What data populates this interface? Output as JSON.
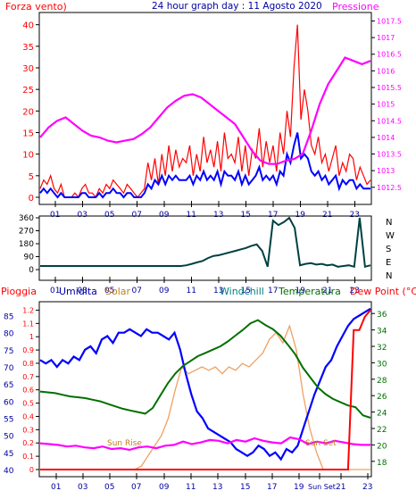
{
  "colors": {
    "frame": "#000000",
    "red": "#ff0000",
    "blue": "#0000ff",
    "navy": "#0000a0",
    "magenta": "#ff00ff",
    "green": "#007000",
    "teal": "#004040",
    "orange": "#f0a060",
    "solarText": "#c08020",
    "windchillText": "#008080"
  },
  "header": {
    "left": "Forza vento)",
    "center": "24 hour graph day : 11 Agosto 2020",
    "right": "Pressione"
  },
  "legend_bottom": {
    "pioggia": "Pioggia",
    "umidita": "Umidita",
    "solar": "Solar",
    "windchill": "Windchill",
    "temperatura": "Temperatura",
    "dewpoint": "Dew Point (°C)"
  },
  "annotations": {
    "sunrise": "Sun Rise",
    "sunset": "Sun Set"
  },
  "chart_data": [
    {
      "type": "line",
      "x_ticks": [
        "01",
        "03",
        "05",
        "07",
        "09",
        "11",
        "13",
        "15",
        "17",
        "19",
        "21",
        "23"
      ],
      "left_axis": {
        "ticks": [
          0,
          5,
          10,
          15,
          20,
          25,
          30,
          35,
          40
        ],
        "ylim": [
          0,
          42
        ]
      },
      "right_axis": {
        "ticks": [
          1012.5,
          1013,
          1013.5,
          1014,
          1014.5,
          1015,
          1015.5,
          1016,
          1016.5,
          1017,
          1017.5
        ],
        "ylim": [
          1012.2,
          1017.7
        ]
      },
      "series": [
        {
          "name": "Forza vento",
          "color": "#ff0000",
          "axis": "left",
          "values": [
            2,
            4,
            3,
            5,
            2,
            1,
            3,
            0,
            0,
            0,
            1,
            0,
            2,
            3,
            1,
            1,
            0,
            2,
            1,
            3,
            2,
            4,
            3,
            2,
            1,
            3,
            2,
            1,
            0,
            1,
            2,
            8,
            4,
            9,
            3,
            10,
            5,
            12,
            6,
            11,
            7,
            9,
            8,
            12,
            5,
            10,
            6,
            14,
            8,
            11,
            7,
            13,
            6,
            15,
            9,
            10,
            8,
            14,
            6,
            12,
            5,
            11,
            9,
            16,
            7,
            13,
            8,
            12,
            6,
            15,
            10,
            20,
            14,
            30,
            40,
            18,
            25,
            20,
            12,
            10,
            14,
            8,
            10,
            6,
            9,
            12,
            5,
            8,
            6,
            10,
            9,
            4,
            7,
            5,
            3,
            4
          ]
        },
        {
          "name": "Vento medio",
          "color": "#0000ff",
          "axis": "left",
          "values": [
            1,
            2,
            1,
            2,
            1,
            0,
            1,
            0,
            0,
            0,
            0,
            0,
            1,
            1,
            0,
            0,
            0,
            1,
            0,
            1,
            1,
            2,
            1,
            1,
            0,
            1,
            1,
            0,
            0,
            0,
            1,
            3,
            2,
            4,
            3,
            5,
            3,
            5,
            4,
            5,
            4,
            4,
            4,
            5,
            3,
            5,
            4,
            6,
            4,
            5,
            4,
            6,
            3,
            6,
            5,
            5,
            4,
            6,
            3,
            5,
            3,
            4,
            5,
            7,
            4,
            5,
            4,
            5,
            3,
            6,
            5,
            10,
            8,
            12,
            15,
            9,
            10,
            9,
            6,
            5,
            6,
            4,
            5,
            3,
            4,
            5,
            2,
            4,
            3,
            4,
            4,
            2,
            3,
            2,
            2,
            2
          ]
        },
        {
          "name": "Pressione",
          "color": "#ff00ff",
          "axis": "right",
          "values": [
            1014,
            1014.3,
            1014.5,
            1014.6,
            1014.4,
            1014.2,
            1014.05,
            1014,
            1013.9,
            1013.85,
            1013.9,
            1013.95,
            1014.1,
            1014.3,
            1014.6,
            1014.9,
            1015.1,
            1015.25,
            1015.3,
            1015.2,
            1015.0,
            1014.8,
            1014.6,
            1014.4,
            1014.0,
            1013.6,
            1013.3,
            1013.2,
            1013.2,
            1013.3,
            1013.35,
            1013.5,
            1014.2,
            1015.0,
            1015.6,
            1016.0,
            1016.4,
            1016.3,
            1016.2,
            1016.3
          ]
        }
      ]
    },
    {
      "type": "line",
      "x_ticks": [
        "01",
        "03",
        "05",
        "07",
        "09",
        "11",
        "13",
        "15",
        "17",
        "19",
        "21",
        "23"
      ],
      "left_axis": {
        "ticks": [
          0,
          90,
          180,
          270,
          360
        ],
        "ylim": [
          0,
          360
        ]
      },
      "right_labels": [
        "N",
        "W",
        "S",
        "E",
        "N"
      ],
      "series": [
        {
          "name": "Direzione vento",
          "color": "#004040",
          "values": [
            25,
            25,
            25,
            25,
            25,
            25,
            25,
            25,
            25,
            25,
            25,
            25,
            25,
            25,
            25,
            25,
            25,
            25,
            25,
            25,
            25,
            25,
            25,
            25,
            25,
            25,
            25,
            30,
            40,
            50,
            60,
            80,
            95,
            100,
            110,
            120,
            130,
            140,
            150,
            165,
            175,
            130,
            20,
            340,
            310,
            330,
            360,
            290,
            30,
            40,
            45,
            35,
            40,
            30,
            35,
            20,
            25,
            30,
            20,
            360,
            20,
            30
          ]
        }
      ]
    },
    {
      "type": "line",
      "x_ticks": [
        "01",
        "03",
        "05",
        "07",
        "09",
        "11",
        "13",
        "15",
        "17",
        "19",
        "Sun Set",
        "21",
        "23"
      ],
      "left_axis": {
        "ticks": [
          40,
          45,
          50,
          55,
          60,
          65,
          70,
          75,
          80,
          85
        ],
        "ylim": [
          40,
          88
        ]
      },
      "rain_axis": {
        "ticks": [
          0,
          0.1,
          0.2,
          0.3,
          0.4,
          0.5,
          0.6,
          0.7,
          0.8,
          0.9,
          1,
          1.1,
          1.2
        ],
        "ylim": [
          0,
          1.25
        ]
      },
      "right_axis": {
        "ticks": [
          18,
          20,
          22,
          24,
          26,
          28,
          30,
          32,
          34,
          36
        ],
        "ylim": [
          17,
          37
        ]
      },
      "series": [
        {
          "name": "Umidita",
          "color": "#0000ff",
          "axis": "left",
          "values": [
            72,
            71,
            72,
            70,
            72,
            71,
            73,
            72,
            75,
            76,
            74,
            78,
            79,
            77,
            80,
            80,
            81,
            80,
            79,
            81,
            80,
            80,
            79,
            78,
            80,
            75,
            68,
            62,
            57,
            55,
            52,
            51,
            50,
            49,
            48,
            46,
            45,
            44,
            45,
            47,
            46,
            44,
            45,
            43,
            46,
            45,
            47,
            52,
            57,
            62,
            66,
            70,
            72,
            76,
            79,
            82,
            84,
            85,
            86,
            87
          ]
        },
        {
          "name": "Temperatura",
          "color": "#007000",
          "axis": "right",
          "values": [
            26.5,
            26.4,
            26.3,
            26.1,
            25.9,
            25.8,
            25.7,
            25.5,
            25.3,
            25.0,
            24.7,
            24.4,
            24.2,
            24.0,
            23.8,
            24.5,
            26,
            27.5,
            28.7,
            29.6,
            30.2,
            30.8,
            31.2,
            31.6,
            32.0,
            32.6,
            33.3,
            34.0,
            34.8,
            35.2,
            34.6,
            34.1,
            33.3,
            32.2,
            31.0,
            29.4,
            28.2,
            27.0,
            26.2,
            25.6,
            25.2,
            24.8,
            24.6,
            23.6,
            23.3
          ]
        },
        {
          "name": "Dew Point",
          "color": "#ff00ff",
          "axis": "right",
          "values": [
            20.2,
            20.1,
            20.0,
            19.8,
            19.9,
            19.7,
            19.6,
            19.8,
            19.5,
            19.6,
            19.4,
            19.7,
            19.8,
            19.6,
            19.9,
            20.0,
            20.4,
            20.1,
            20.3,
            20.6,
            20.5,
            20.2,
            20.6,
            20.4,
            20.8,
            20.5,
            20.3,
            20.2,
            20.9,
            20.7,
            20.1,
            20.4,
            20.2,
            20.5,
            20.3,
            20.1,
            20.0,
            20.0
          ]
        },
        {
          "name": "Solar",
          "color": "#f0a060",
          "axis": "left",
          "values": [
            40,
            40,
            40,
            40,
            40,
            40,
            40,
            40,
            40,
            40,
            40,
            40,
            40,
            40,
            40,
            41,
            44,
            47,
            50,
            55,
            63,
            70,
            68,
            69,
            70,
            69,
            70,
            68,
            70,
            69,
            71,
            70,
            72,
            74,
            78,
            80,
            77,
            82,
            75,
            62,
            52,
            45,
            40,
            40,
            40,
            40,
            40,
            40,
            40,
            40
          ]
        },
        {
          "name": "Pioggia",
          "color": "#ff0000",
          "axis": "rain",
          "values": [
            0,
            0,
            0,
            0,
            0,
            0,
            0,
            0,
            0,
            0,
            0,
            0,
            0,
            0,
            0,
            0,
            0,
            0,
            0,
            0,
            0,
            0,
            0,
            0,
            0,
            0,
            0,
            0,
            0,
            0,
            0,
            0,
            0,
            0,
            0,
            0,
            0,
            0,
            0,
            0,
            0,
            0,
            0,
            0,
            0,
            0,
            0,
            0,
            0,
            0,
            0,
            0,
            0,
            0,
            0,
            0,
            1.05,
            1.05,
            1.15,
            1.2
          ]
        }
      ]
    }
  ]
}
